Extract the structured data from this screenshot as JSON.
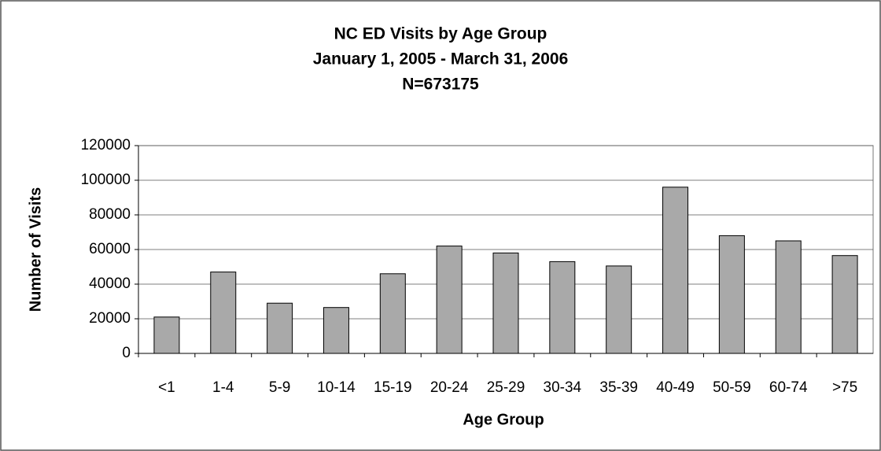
{
  "chart_data": {
    "type": "bar",
    "title": "NC ED Visits by Age Group",
    "subtitle": "January 1, 2005 - March 31, 2006",
    "annotations": [
      "N=673175"
    ],
    "x_label": "Age Group",
    "y_label": "Number of Visits",
    "categories": [
      "<1",
      "1-4",
      "5-9",
      "10-14",
      "15-19",
      "20-24",
      "25-29",
      "30-34",
      "35-39",
      "40-49",
      "50-59",
      "60-74",
      ">75"
    ],
    "values": [
      21000,
      47000,
      29000,
      26500,
      46000,
      62000,
      58000,
      53000,
      50500,
      96000,
      68000,
      65000,
      56500
    ],
    "color": "#a9a9a9",
    "ylim": [
      0,
      120000
    ],
    "yticks": [
      0,
      20000,
      40000,
      60000,
      80000,
      100000,
      120000
    ],
    "grid": true
  }
}
